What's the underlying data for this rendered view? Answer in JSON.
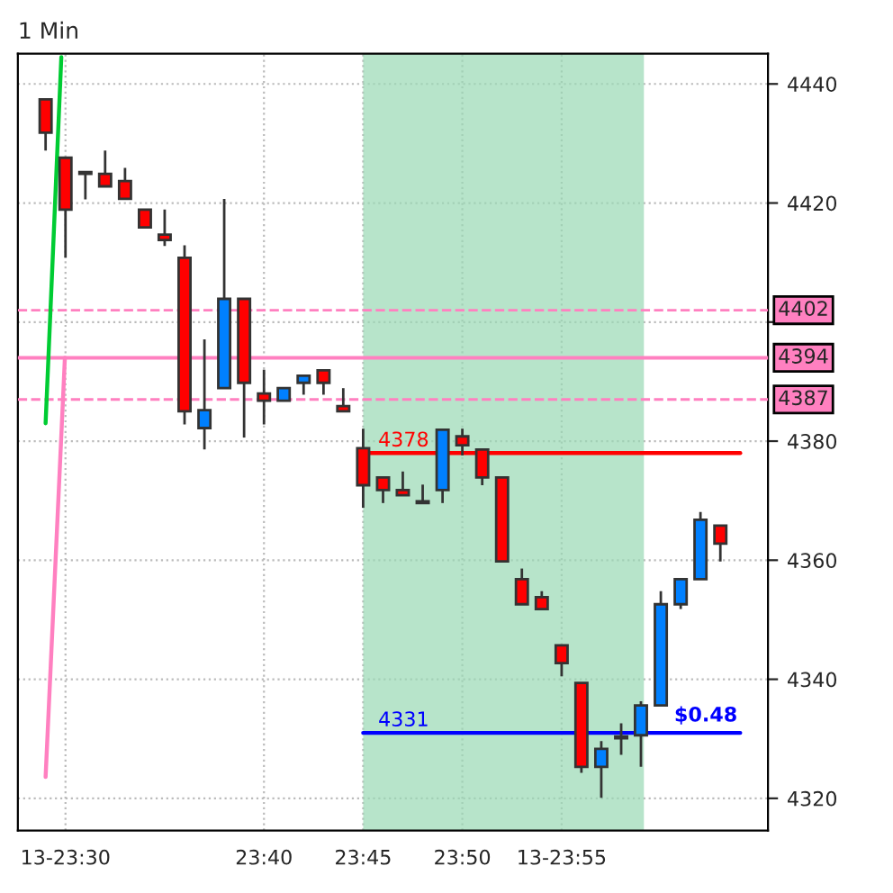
{
  "chart_data": {
    "type": "candlestick",
    "title": "1 Min",
    "x": [
      23.4833,
      23.5,
      23.5167,
      23.5333,
      23.55,
      23.5667,
      23.5833,
      23.6,
      23.6167,
      23.6333,
      23.65,
      23.6667,
      23.6833,
      23.7,
      23.7167,
      23.7333,
      23.75,
      23.7667,
      23.7833,
      23.8,
      23.8167,
      23.8333,
      23.85,
      23.8667,
      23.8833,
      23.9,
      23.9167,
      23.9333,
      23.95,
      23.9667,
      23.9833,
      24.0,
      24.0167,
      24.0333,
      24.05
    ],
    "ohlc": [
      [
        4437.4,
        4437.4,
        4428.8,
        4431.8
      ],
      [
        4427.6,
        4427.6,
        4410.8,
        4418.9
      ],
      [
        4424.9,
        4424.9,
        4420.6,
        4424.9
      ],
      [
        4424.9,
        4428.8,
        4422.8,
        4422.8
      ],
      [
        4423.7,
        4425.9,
        4420.7,
        4420.7
      ],
      [
        4418.9,
        4418.9,
        4415.9,
        4415.9
      ],
      [
        4414.7,
        4418.9,
        4412.8,
        4413.8
      ],
      [
        4410.8,
        4412.9,
        4382.8,
        4385.0
      ],
      [
        4382.2,
        4397.1,
        4378.6,
        4385.2
      ],
      [
        4388.9,
        4420.7,
        4388.9,
        4403.9
      ],
      [
        4403.9,
        4403.9,
        4380.6,
        4389.8
      ],
      [
        4388.0,
        4392.0,
        4382.8,
        4386.8
      ],
      [
        4386.8,
        4388.9,
        4386.8,
        4388.9
      ],
      [
        4389.8,
        4391.0,
        4387.8,
        4391.0
      ],
      [
        4391.9,
        4391.9,
        4387.8,
        4389.8
      ],
      [
        4385.9,
        4388.9,
        4385.0,
        4385.0
      ],
      [
        4378.8,
        4382.1,
        4368.8,
        4372.6
      ],
      [
        4373.9,
        4373.9,
        4369.6,
        4371.8
      ],
      [
        4371.8,
        4374.9,
        4370.9,
        4370.9
      ],
      [
        4369.6,
        4372.7,
        4369.6,
        4369.6
      ],
      [
        4371.8,
        4382.1,
        4369.6,
        4381.9
      ],
      [
        4380.8,
        4382.1,
        4377.6,
        4379.3
      ],
      [
        4378.6,
        4378.6,
        4372.6,
        4373.9
      ],
      [
        4373.9,
        4373.9,
        4359.8,
        4359.8
      ],
      [
        4356.8,
        4358.6,
        4352.6,
        4352.6
      ],
      [
        4353.8,
        4354.8,
        4351.8,
        4351.8
      ],
      [
        4345.7,
        4345.7,
        4340.5,
        4342.7
      ],
      [
        4339.4,
        4339.4,
        4324.3,
        4325.3
      ],
      [
        4325.3,
        4329.6,
        4320.1,
        4328.3
      ],
      [
        4330.1,
        4332.6,
        4327.3,
        4330.1
      ],
      [
        4330.6,
        4336.3,
        4325.3,
        4335.6
      ],
      [
        4335.6,
        4354.8,
        4335.6,
        4352.6
      ],
      [
        4352.6,
        4356.8,
        4351.8,
        4356.8
      ],
      [
        4356.8,
        4368.1,
        4356.8,
        4366.8
      ],
      [
        4365.8,
        4365.8,
        4359.8,
        4362.8
      ]
    ],
    "colors": [
      "#ff0000",
      "#ff0000",
      "#ff0000",
      "#ff0000",
      "#ff0000",
      "#ff0000",
      "#ff0000",
      "#ff0000",
      "#0080ff",
      "#0080ff",
      "#ff0000",
      "#ff0000",
      "#0080ff",
      "#0080ff",
      "#ff0000",
      "#ff0000",
      "#ff0000",
      "#ff0000",
      "#ff0000",
      "#ff0000",
      "#0080ff",
      "#ff0000",
      "#ff0000",
      "#ff0000",
      "#ff0000",
      "#ff0000",
      "#ff0000",
      "#ff0000",
      "#0080ff",
      "#ff0000",
      "#0080ff",
      "#0080ff",
      "#0080ff",
      "#0080ff",
      "#ff0000"
    ],
    "series": [
      {
        "type": "line",
        "color": "#00cc33",
        "x": [
          23.4833,
          23.4889,
          23.4965
        ],
        "values": [
          4383,
          4409,
          4444.5
        ]
      },
      {
        "type": "line",
        "color": "#ff80c0",
        "x": [
          23.4833,
          23.4995
        ],
        "values": [
          4323.6,
          4394
        ]
      },
      {
        "type": "line",
        "name": "4378",
        "color": "#ff0000",
        "x": [
          23.75,
          24.0667
        ],
        "values": [
          4378,
          4378
        ]
      },
      {
        "type": "line",
        "name": "4331",
        "color": "#0000ff",
        "x": [
          23.75,
          24.0667
        ],
        "values": [
          4331,
          4331
        ]
      }
    ],
    "ref_lines": [
      {
        "axis": "y",
        "value": 4402,
        "label": "4402",
        "color": "#ff80c0",
        "line_style": "dashed"
      },
      {
        "axis": "y",
        "value": 4394,
        "label": "4394",
        "color": "#ff80c0",
        "line_style": "solid"
      },
      {
        "axis": "y",
        "value": 4387,
        "label": "4387",
        "color": "#ff80c0",
        "line_style": "dashed"
      }
    ],
    "bands": [
      {
        "axis": "x",
        "from": 23.75,
        "to": 23.9858,
        "color": "#98d8b4"
      }
    ],
    "annotations": [
      "$0.48"
    ],
    "xlim": [
      23.46,
      24.09
    ],
    "ylim": [
      4314.6,
      4445.1
    ],
    "xticks": [
      {
        "value": 23.5,
        "label": "13-23:30"
      },
      {
        "value": 23.6667,
        "label": "23:40"
      },
      {
        "value": 23.75,
        "label": "23:45"
      },
      {
        "value": 23.8333,
        "label": "23:50"
      },
      {
        "value": 23.9167,
        "label": "13-23:55"
      }
    ],
    "yticks": [
      4320,
      4340,
      4360,
      4380,
      {
        "value": 4400,
        "label": null
      },
      4420,
      4440
    ],
    "grid": true,
    "legend": false
  }
}
